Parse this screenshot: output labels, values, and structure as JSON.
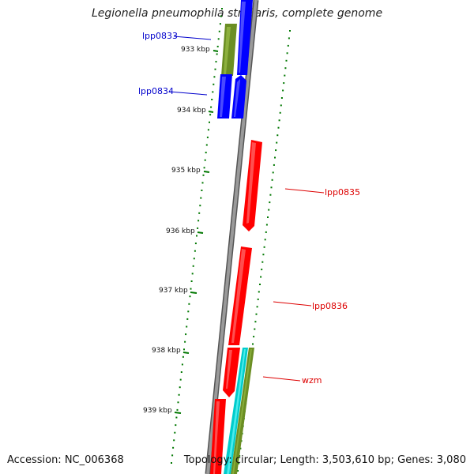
{
  "title": "Legionella pneumophila str. Paris, complete genome",
  "accession": "Accession: NC_006368",
  "topology": "Topology: circular; Length: 3,503,610 bp; Genes: 3,080",
  "ticks": [
    {
      "label": "933 kbp"
    },
    {
      "label": "934 kbp"
    },
    {
      "label": "935 kbp"
    },
    {
      "label": "936 kbp"
    },
    {
      "label": "937 kbp"
    },
    {
      "label": "938 kbp"
    },
    {
      "label": "939 kbp"
    }
  ],
  "genes": [
    {
      "label": "lpp0833",
      "color": "#0000cc"
    },
    {
      "label": "lpp0834",
      "color": "#0000cc"
    },
    {
      "label": "lpp0835",
      "color": "#dd0000"
    },
    {
      "label": "lpp0836",
      "color": "#dd0000"
    },
    {
      "label": "wzm",
      "color": "#dd0000"
    }
  ],
  "colors": {
    "forward_cds": "#ff0000",
    "reverse_cds": "#0000ff",
    "olive_feature": "#6b8e23",
    "cyan_feature": "#00cccc",
    "backbone": "#808080",
    "gc_marks": "#007700"
  }
}
